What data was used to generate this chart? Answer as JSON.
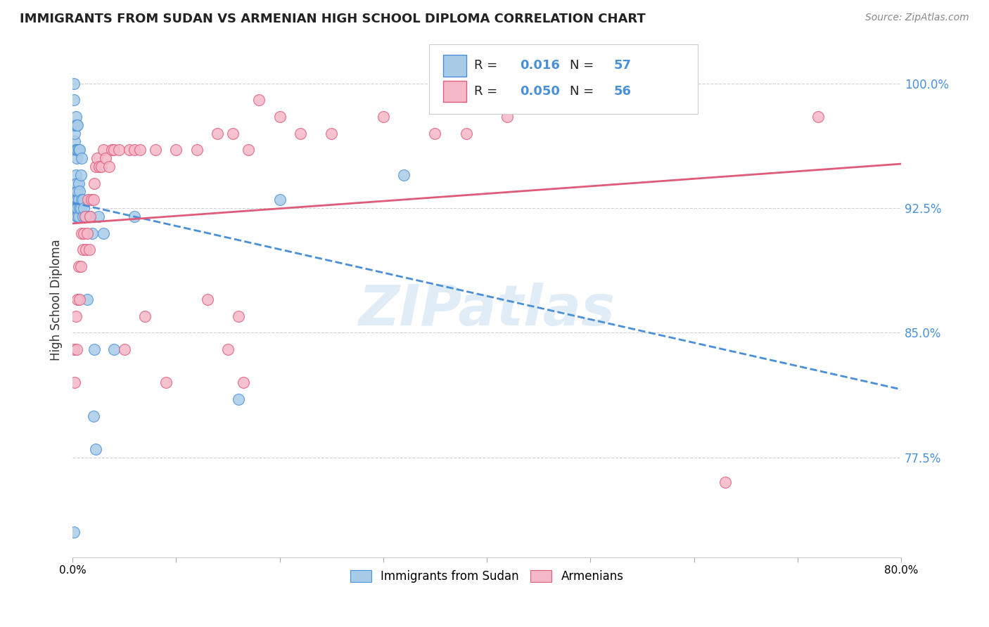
{
  "title": "IMMIGRANTS FROM SUDAN VS ARMENIAN HIGH SCHOOL DIPLOMA CORRELATION CHART",
  "source": "Source: ZipAtlas.com",
  "ylabel": "High School Diploma",
  "watermark": "ZIPatlas",
  "legend_label1": "Immigrants from Sudan",
  "legend_label2": "Armenians",
  "R1": 0.016,
  "N1": 57,
  "R2": 0.05,
  "N2": 56,
  "color1": "#a8cce8",
  "color2": "#f5b8c8",
  "trendline1_color": "#4a90d9",
  "trendline2_color": "#e05a7a",
  "xmin": 0.0,
  "xmax": 0.8,
  "ymin": 0.715,
  "ymax": 1.025,
  "yticks": [
    0.775,
    0.85,
    0.925,
    1.0
  ],
  "ytick_labels": [
    "77.5%",
    "85.0%",
    "92.5%",
    "100.0%"
  ],
  "xticks": [
    0.0,
    0.1,
    0.2,
    0.3,
    0.4,
    0.5,
    0.6,
    0.7,
    0.8
  ],
  "xtick_labels": [
    "0.0%",
    "",
    "",
    "",
    "",
    "",
    "",
    "",
    "80.0%"
  ],
  "scatter1_x": [
    0.001,
    0.001,
    0.001,
    0.002,
    0.002,
    0.002,
    0.002,
    0.003,
    0.003,
    0.003,
    0.003,
    0.003,
    0.003,
    0.004,
    0.004,
    0.004,
    0.004,
    0.004,
    0.004,
    0.004,
    0.004,
    0.005,
    0.005,
    0.005,
    0.005,
    0.005,
    0.005,
    0.006,
    0.006,
    0.006,
    0.006,
    0.007,
    0.007,
    0.007,
    0.008,
    0.008,
    0.009,
    0.009,
    0.01,
    0.01,
    0.011,
    0.012,
    0.013,
    0.014,
    0.016,
    0.017,
    0.019,
    0.02,
    0.021,
    0.022,
    0.025,
    0.03,
    0.04,
    0.06,
    0.16,
    0.2,
    0.32
  ],
  "scatter1_y": [
    0.73,
    0.99,
    1.0,
    0.96,
    0.965,
    0.97,
    0.975,
    0.925,
    0.93,
    0.945,
    0.96,
    0.975,
    0.98,
    0.92,
    0.925,
    0.93,
    0.935,
    0.94,
    0.955,
    0.96,
    0.975,
    0.92,
    0.925,
    0.93,
    0.935,
    0.96,
    0.975,
    0.92,
    0.93,
    0.94,
    0.96,
    0.925,
    0.935,
    0.96,
    0.925,
    0.945,
    0.93,
    0.955,
    0.92,
    0.93,
    0.925,
    0.92,
    0.92,
    0.87,
    0.92,
    0.92,
    0.91,
    0.8,
    0.84,
    0.78,
    0.92,
    0.91,
    0.84,
    0.92,
    0.81,
    0.93,
    0.945
  ],
  "scatter2_x": [
    0.001,
    0.002,
    0.003,
    0.004,
    0.005,
    0.006,
    0.007,
    0.008,
    0.009,
    0.01,
    0.011,
    0.012,
    0.013,
    0.014,
    0.015,
    0.016,
    0.017,
    0.018,
    0.02,
    0.021,
    0.022,
    0.024,
    0.026,
    0.028,
    0.03,
    0.032,
    0.035,
    0.038,
    0.04,
    0.045,
    0.05,
    0.055,
    0.06,
    0.065,
    0.07,
    0.08,
    0.09,
    0.1,
    0.12,
    0.13,
    0.14,
    0.15,
    0.155,
    0.16,
    0.165,
    0.17,
    0.18,
    0.2,
    0.22,
    0.25,
    0.3,
    0.35,
    0.38,
    0.42,
    0.63,
    0.72
  ],
  "scatter2_y": [
    0.84,
    0.82,
    0.86,
    0.84,
    0.87,
    0.89,
    0.87,
    0.89,
    0.91,
    0.9,
    0.91,
    0.92,
    0.9,
    0.91,
    0.93,
    0.9,
    0.92,
    0.93,
    0.93,
    0.94,
    0.95,
    0.955,
    0.95,
    0.95,
    0.96,
    0.955,
    0.95,
    0.96,
    0.96,
    0.96,
    0.84,
    0.96,
    0.96,
    0.96,
    0.86,
    0.96,
    0.82,
    0.96,
    0.96,
    0.87,
    0.97,
    0.84,
    0.97,
    0.86,
    0.82,
    0.96,
    0.99,
    0.98,
    0.97,
    0.97,
    0.98,
    0.97,
    0.97,
    0.98,
    0.76,
    0.98
  ]
}
